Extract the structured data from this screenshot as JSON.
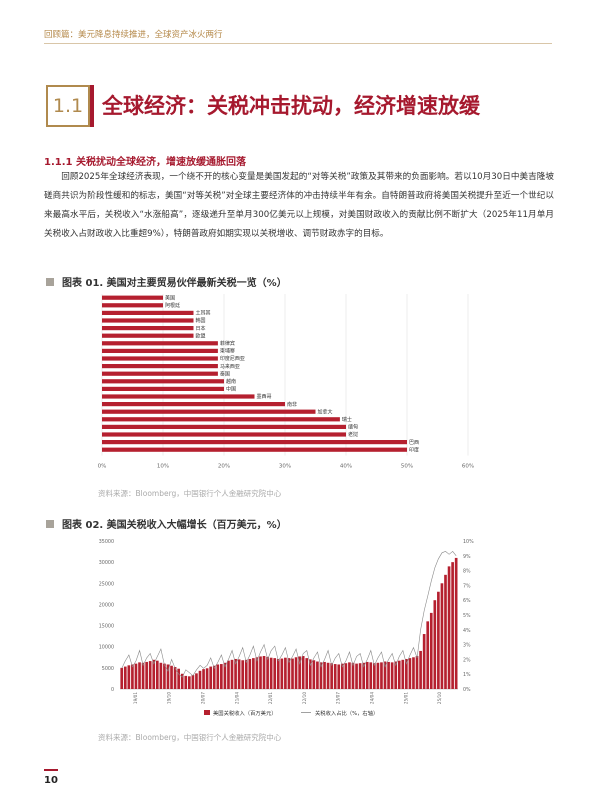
{
  "header": {
    "text": "回顾篇：美元降息持续推进，全球资产冰火两行"
  },
  "section": {
    "number": "1.1",
    "title": "全球经济：关税冲击扰动，经济增速放缓"
  },
  "subsection": {
    "title": "1.1.1 关税扰动全球经济，增速放缓通胀回落"
  },
  "paragraph": "回顾2025年全球经济表现，一个绕不开的核心变量是美国发起的“对等关税”政策及其带来的负面影响。若以10月30日中美吉隆坡磋商共识为阶段性缓和的标志，美国“对等关税”对全球主要经济体的冲击持续半年有余。自特朗普政府将美国关税提升至近一个世纪以来最高水平后，关税收入“水涨船高”，逐级递升至单月300亿美元以上规模，对美国财政收入的贡献比例不断扩大（2025年11月单月关税收入占财政收入比重超9%），特朗普政府如期实现以关税增收、调节财政赤字的目标。",
  "figure1": {
    "title": "图表 01. 美国对主要贸易伙伴最新关税一览（%）",
    "source": "资料来源：Bloomberg，中国银行个人金融研究院中心"
  },
  "figure2": {
    "title": "图表 02. 美国关税收入大幅增长（百万美元，%）",
    "source": "资料来源：Bloomberg，中国银行个人金融研究院中心"
  },
  "page": {
    "number": "10"
  },
  "colors": {
    "accent": "#a6192e",
    "gold": "#b08a4e",
    "bar": "#b5202f"
  },
  "chart_data": [
    {
      "type": "bar",
      "orientation": "horizontal",
      "categories": [
        "美国",
        "阿根廷",
        "土耳其",
        "韩国",
        "日本",
        "欧盟",
        "菲律宾",
        "柬埔寨",
        "印度尼西亚",
        "马来西亚",
        "泰国",
        "越南",
        "中国",
        "墨西哥",
        "南非",
        "加拿大",
        "瑞士",
        "缅甸",
        "老挝",
        "巴西",
        "印度"
      ],
      "values": [
        10,
        10,
        15,
        15,
        15,
        15,
        19,
        19,
        19,
        19,
        19,
        20,
        20,
        25,
        30,
        35,
        39,
        40,
        40,
        50,
        50
      ],
      "xlim": [
        0,
        60
      ],
      "xticks": [
        "0%",
        "10%",
        "20%",
        "30%",
        "40%",
        "50%",
        "60%"
      ],
      "grid": true
    },
    {
      "type": "bar+line",
      "left_axis": {
        "ticks": [
          "0",
          "5000",
          "10000",
          "15000",
          "20000",
          "25000",
          "30000",
          "35000"
        ],
        "range": [
          0,
          35000
        ]
      },
      "right_axis": {
        "ticks": [
          "0%",
          "1%",
          "2%",
          "3%",
          "4%",
          "5%",
          "6%",
          "7%",
          "8%",
          "9%",
          "10%"
        ],
        "range": [
          0,
          10
        ]
      },
      "x_labels": [
        "19/01",
        "19/10",
        "20/07",
        "21/04",
        "22/01",
        "22/10",
        "23/07",
        "24/04",
        "25/01",
        "25/10"
      ],
      "series": [
        {
          "name": "美国关税收入（百万美元）",
          "type": "bar",
          "values": [
            5000,
            5300,
            5600,
            5800,
            6000,
            6300,
            6200,
            6400,
            6600,
            6900,
            6700,
            6200,
            6000,
            5800,
            5500,
            5200,
            4800,
            3600,
            3100,
            3000,
            3300,
            3700,
            4300,
            4700,
            4900,
            5300,
            5500,
            5800,
            5900,
            6200,
            6700,
            6900,
            7100,
            7000,
            6800,
            6900,
            7100,
            7300,
            7500,
            7700,
            7800,
            7600,
            7400,
            7300,
            7100,
            7200,
            7400,
            7300,
            7200,
            7500,
            7700,
            7800,
            7300,
            7000,
            6800,
            6500,
            6300,
            6400,
            6200,
            6100,
            5900,
            5800,
            6000,
            6100,
            6300,
            6200,
            6000,
            6100,
            6200,
            6400,
            6300,
            6100,
            6200,
            6300,
            6500,
            6400,
            6300,
            6500,
            6700,
            6900,
            7100,
            7300,
            7500,
            7800,
            9000,
            13000,
            16000,
            18000,
            21000,
            23000,
            25000,
            27000,
            29000,
            30000,
            31000
          ]
        },
        {
          "name": "关税收入占比（%，右轴）",
          "type": "line",
          "values": [
            1.4,
            1.9,
            2.3,
            1.5,
            1.9,
            2.6,
            1.6,
            2.1,
            2.4,
            1.7,
            2.2,
            2.7,
            1.6,
            1.2,
            2.0,
            1.4,
            1.0,
            0.8,
            1.3,
            1.1,
            0.9,
            1.3,
            1.6,
            1.4,
            1.6,
            2.1,
            1.4,
            1.8,
            2.3,
            1.5,
            2.0,
            2.6,
            1.7,
            2.2,
            2.8,
            1.8,
            2.3,
            2.9,
            1.9,
            2.5,
            3.0,
            2.0,
            2.6,
            2.9,
            1.9,
            2.3,
            2.8,
            1.8,
            2.2,
            2.7,
            1.7,
            2.4,
            2.6,
            1.6,
            2.1,
            2.5,
            1.5,
            2.0,
            2.6,
            1.6,
            2.1,
            2.4,
            1.5,
            1.9,
            2.5,
            1.6,
            2.2,
            2.4,
            1.5,
            2.0,
            2.6,
            1.6,
            2.1,
            2.5,
            1.5,
            2.0,
            2.4,
            1.6,
            2.2,
            2.6,
            1.7,
            2.3,
            2.8,
            2.1,
            4.0,
            5.3,
            6.3,
            7.3,
            8.2,
            8.8,
            9.2,
            9.3,
            9.1,
            9.3,
            9.0
          ]
        }
      ]
    }
  ]
}
